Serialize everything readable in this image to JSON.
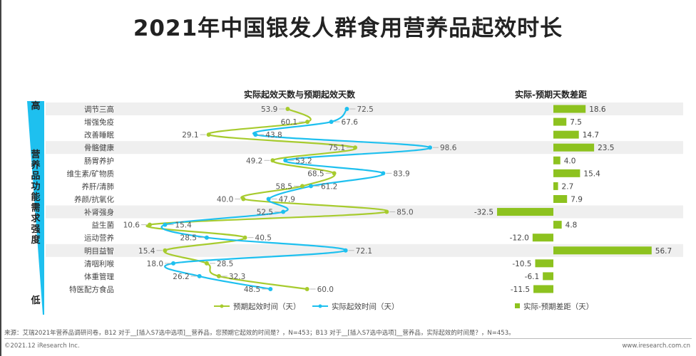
{
  "title": "2021年中国银发人群食用营养品起效时长",
  "y_axis": {
    "top": "高",
    "bottom": "低",
    "label": "营养品功能需求强度"
  },
  "chart_data": [
    {
      "type": "line",
      "title": "实际起效天数与预期起效天数",
      "categories": [
        "调节三高",
        "增强免疫",
        "改善睡眠",
        "骨骼健康",
        "肠胃养护",
        "维生素/矿物质",
        "养肝/清肺",
        "养颜/抗氧化",
        "补肾强身",
        "益生菌",
        "运动营养",
        "明目益智",
        "清咽利喉",
        "体重管理",
        "特医配方食品"
      ],
      "series": [
        {
          "name": "预期起效时间（天）",
          "color": "#a7cb2e",
          "values": [
            53.9,
            60.1,
            29.1,
            75.1,
            49.2,
            68.5,
            58.5,
            40.0,
            85.0,
            10.6,
            40.5,
            15.4,
            28.5,
            32.3,
            60.0
          ]
        },
        {
          "name": "实际起效时间（天）",
          "color": "#1ec0ef",
          "values": [
            72.5,
            67.6,
            43.8,
            98.6,
            53.2,
            83.9,
            61.2,
            47.9,
            52.5,
            15.4,
            28.5,
            72.1,
            18.0,
            26.2,
            48.5
          ]
        }
      ],
      "shaded_rows": [
        "调节三高",
        "骨骼健康",
        "补肾强身",
        "明目益智"
      ]
    },
    {
      "type": "bar",
      "title": "实际-预期天数差距",
      "categories": [
        "调节三高",
        "增强免疫",
        "改善睡眠",
        "骨骼健康",
        "肠胃养护",
        "维生素/矿物质",
        "养肝/清肺",
        "养颜/抗氧化",
        "补肾强身",
        "益生菌",
        "运动营养",
        "明目益智",
        "清咽利喉",
        "体重管理",
        "特医配方食品"
      ],
      "series": [
        {
          "name": "实际-预期差距（天）",
          "color": "#8dc21f",
          "values": [
            18.6,
            7.5,
            14.7,
            23.5,
            4.0,
            15.4,
            2.7,
            7.9,
            -32.5,
            4.8,
            -12.0,
            56.7,
            -10.5,
            -6.1,
            -11.5
          ]
        }
      ]
    }
  ],
  "footer": {
    "source": "来源：艾瑞2021年营养品调研问卷，B12 对于__[插入S7选中选项]__营养品，您预期它起效的时间是？，N=453；B13 对于__[插入S7选中选项]__营养品，实际起效的时间是？，N=453。",
    "copyright": "©2021.12 iResearch Inc.",
    "url": "www.iresearch.com.cn"
  }
}
